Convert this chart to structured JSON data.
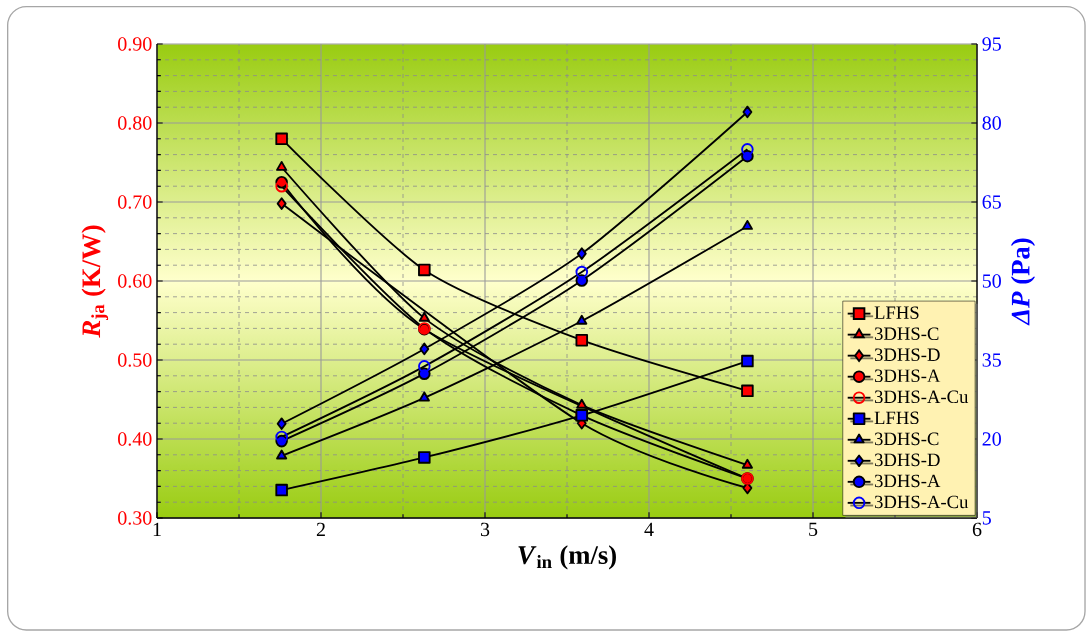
{
  "chart_data": {
    "type": "line",
    "xlabel": "*V*$_{in}$ (m/s)",
    "ylabel": "*R*$_{ja}$ (K/W)",
    "y2label": "*ΔP* (Pa)",
    "xlim": [
      1,
      6
    ],
    "xticks": [
      1,
      2,
      3,
      4,
      5,
      6
    ],
    "ylim": [
      0.3,
      0.9
    ],
    "yticks": [
      {
        "value": 0.3,
        "label": "0.30"
      },
      {
        "value": 0.4,
        "label": "0.40"
      },
      {
        "value": 0.5,
        "label": "0.50"
      },
      {
        "value": 0.6,
        "label": "0.60"
      },
      {
        "value": 0.7,
        "label": "0.70"
      },
      {
        "value": 0.8,
        "label": "0.80"
      },
      {
        "value": 0.9,
        "label": "0.90"
      }
    ],
    "y2lim": [
      5,
      95
    ],
    "y2ticks": [
      5,
      20,
      35,
      50,
      65,
      80,
      95
    ],
    "grid": true,
    "legend": "bottom right",
    "x": [
      1.76,
      2.63,
      3.59,
      4.6
    ],
    "series": [
      {
        "name": "LFHS",
        "color": "#ff0000",
        "marker": "square",
        "values": [
          0.78,
          0.614,
          0.525,
          0.461
        ]
      },
      {
        "name": "3DHS-C",
        "color": "#ff0000",
        "marker": "triangle",
        "values": [
          0.744,
          0.553,
          0.443,
          0.367
        ]
      },
      {
        "name": "3DHS-D",
        "color": "#ff0000",
        "marker": "diamond",
        "values": [
          0.698,
          null,
          0.42,
          0.338
        ]
      },
      {
        "name": "3DHS-A",
        "color": "#ff0000",
        "marker": "circle",
        "values": [
          0.725,
          0.539,
          null,
          0.35
        ]
      },
      {
        "name": "3DHS-A-Cu",
        "color": "#ff0000",
        "marker": "circle",
        "values": [
          0.72,
          0.54,
          0.43,
          0.35
        ]
      },
      {
        "name": "LFHS",
        "color": "#0000ff",
        "marker": "square",
        "axis": "y2",
        "values": [
          10.3,
          16.5,
          24.5,
          34.8
        ]
      },
      {
        "name": "3DHS-C",
        "color": "#0000ff",
        "marker": "triangle",
        "axis": "y2",
        "values": [
          16.8,
          27.8,
          42.4,
          60.4
        ]
      },
      {
        "name": "3DHS-D",
        "color": "#0000ff",
        "marker": "diamond",
        "axis": "y2",
        "values": [
          22.9,
          37.1,
          55.2,
          82.1
        ]
      },
      {
        "name": "3DHS-A",
        "color": "#0000ff",
        "marker": "circle",
        "axis": "y2",
        "values": [
          19.6,
          32.4,
          50.1,
          73.7
        ]
      },
      {
        "name": "3DHS-A-Cu",
        "color": "#0000ff",
        "marker": "circle",
        "axis": "y2",
        "values": [
          20.4,
          33.8,
          51.7,
          75.0
        ]
      }
    ]
  }
}
